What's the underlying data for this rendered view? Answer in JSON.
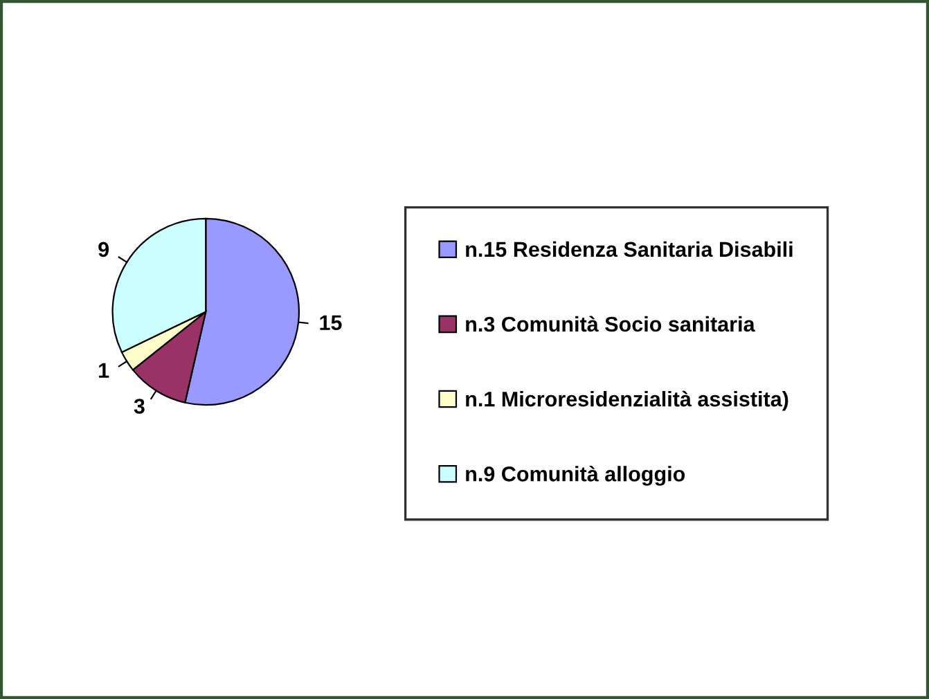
{
  "chart_data": {
    "type": "pie",
    "categories": [
      "n.15 Residenza Sanitaria Disabili",
      "n.3 Comunità Socio sanitaria",
      "n.1 Microresidenzialità assistita)",
      "n.9 Comunità alloggio"
    ],
    "values": [
      15,
      3,
      1,
      9
    ],
    "colors": [
      "#9999ff",
      "#993366",
      "#ffffcc",
      "#ccffff"
    ],
    "data_labels": true,
    "legend": "right"
  }
}
